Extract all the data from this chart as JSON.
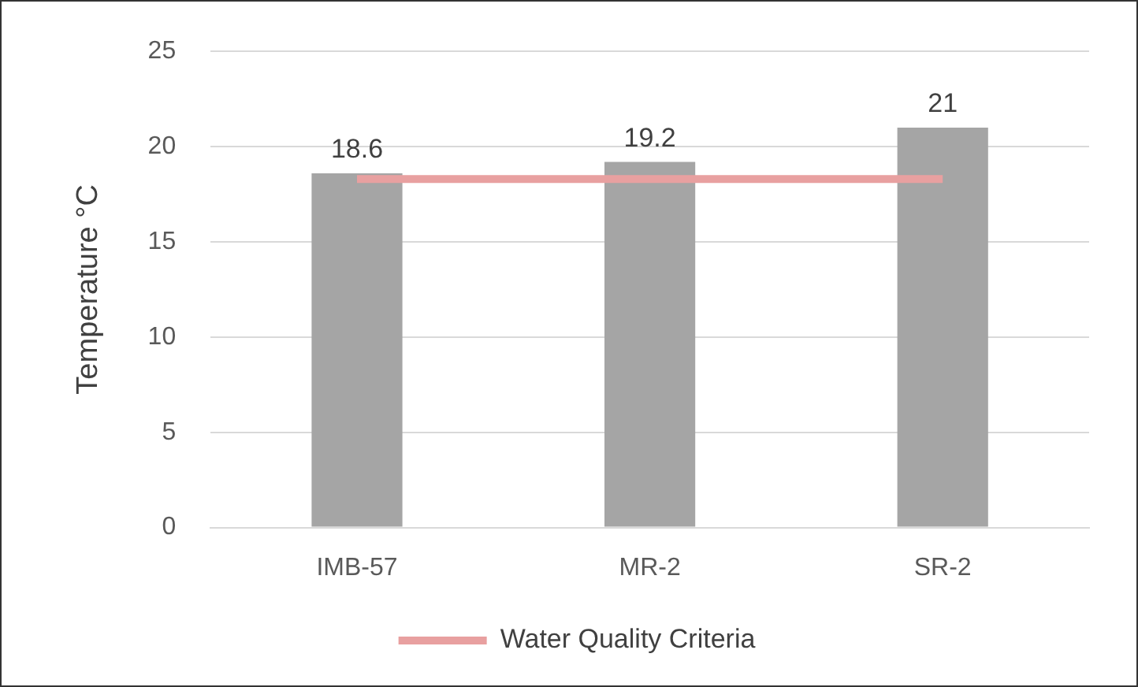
{
  "chart_data": {
    "type": "bar",
    "ylabel": "Temperature °C",
    "categories": [
      "IMB-57",
      "MR-2",
      "SR-2"
    ],
    "series": [
      {
        "color": "#a5a5a5",
        "values": [
          18.6,
          19.2,
          21
        ],
        "value_labels": [
          "18.6",
          "19.2",
          "21"
        ]
      },
      {
        "type": "line",
        "name": "Water Quality Criteria",
        "color": "#e8a0a0",
        "values": [
          18.3,
          18.3,
          18.3
        ]
      }
    ],
    "ylim": [
      0,
      25
    ],
    "yticks": [
      0,
      5,
      10,
      15,
      20,
      25
    ],
    "grid": "y",
    "legend": "bottom",
    "marker": "none"
  }
}
